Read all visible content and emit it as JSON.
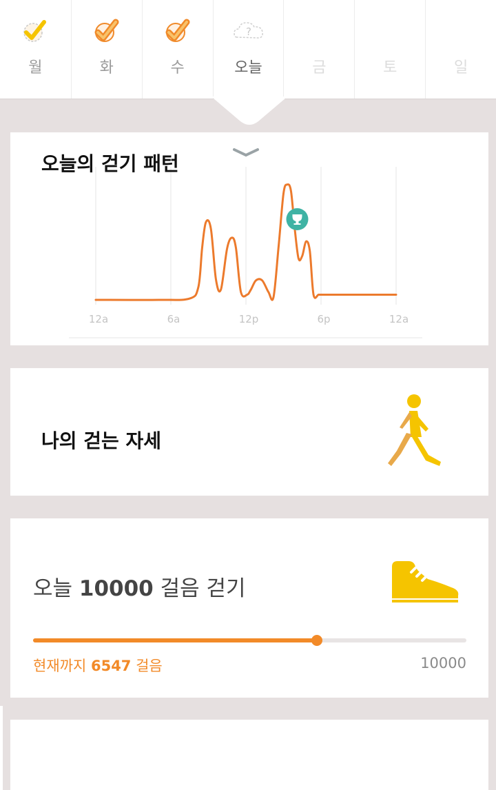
{
  "days": [
    {
      "label": "월",
      "status": "done",
      "icon": "check-badge-icon"
    },
    {
      "label": "화",
      "status": "done",
      "icon": "check-badge-icon"
    },
    {
      "label": "수",
      "status": "done",
      "icon": "check-badge-icon"
    },
    {
      "label": "오늘",
      "status": "today",
      "icon": "question-cloud-icon",
      "icon_text": "?"
    },
    {
      "label": "금",
      "status": "future"
    },
    {
      "label": "토",
      "status": "future"
    },
    {
      "label": "일",
      "status": "future"
    }
  ],
  "pattern_card": {
    "title": "오늘의 걷기 패턴"
  },
  "chart_data": {
    "type": "line",
    "title": "오늘의 걷기 패턴",
    "x_ticks": [
      "12a",
      "6a",
      "12p",
      "6p",
      "12a"
    ],
    "x_range_hours": [
      0,
      24
    ],
    "y_range": [
      0,
      100
    ],
    "grid": "vertical",
    "series": [
      {
        "color": "#ec7a2c",
        "x": [
          0,
          5,
          7.5,
          8.2,
          8.5,
          8.8,
          9.2,
          9.6,
          10.0,
          10.5,
          10.9,
          11.2,
          11.6,
          12.1,
          12.4,
          12.8,
          13.3,
          13.8,
          14.2,
          14.6,
          15.0,
          15.3,
          15.6,
          15.9,
          16.2,
          16.5,
          16.8,
          17.1,
          17.4,
          17.8,
          18.1,
          18.4,
          18.7,
          19.0,
          19.4,
          20,
          24
        ],
        "y": [
          0,
          0,
          1,
          10,
          40,
          60,
          55,
          16,
          8,
          40,
          48,
          40,
          6,
          4,
          8,
          15,
          15,
          6,
          2,
          40,
          82,
          89,
          84,
          55,
          32,
          34,
          45,
          38,
          4,
          4,
          4,
          4,
          4,
          4,
          4,
          4,
          4
        ]
      }
    ],
    "peak_marker": {
      "x": 16.1,
      "icon": "trophy-icon",
      "color": "#3fb3a4"
    }
  },
  "posture_card": {
    "title": "나의 걷는 자세",
    "icon": "walking-person-icon",
    "icon_color": "#f5c400"
  },
  "goal_card": {
    "title_prefix": "오늘",
    "goal_number": "10000",
    "title_suffix": "걸음 걷기",
    "icon": "sneaker-icon",
    "icon_color": "#f5c400",
    "progress_prefix": "현재까지",
    "current_steps": "6547",
    "progress_suffix": "걸음",
    "goal_label": "10000",
    "progress_fraction": 0.6547,
    "accent": "#f28a28"
  }
}
